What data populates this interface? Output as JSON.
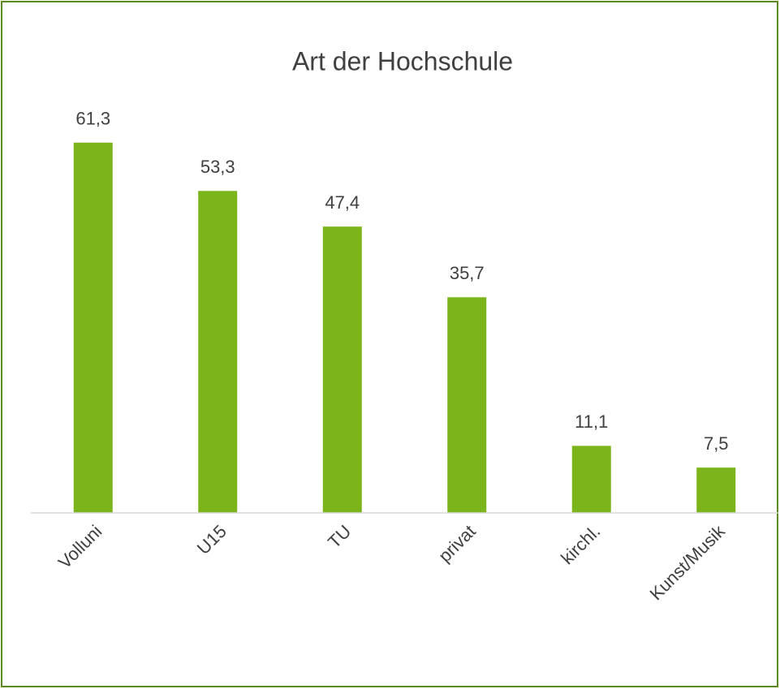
{
  "chart_data": {
    "type": "bar",
    "title": "Art der Hochschule",
    "categories": [
      "Volluni",
      "U15",
      "TU",
      "privat",
      "kirchl.",
      "Kunst/Musik"
    ],
    "values": [
      61.3,
      53.3,
      47.4,
      35.7,
      11.1,
      7.5
    ],
    "value_labels": [
      "61,3",
      "53,3",
      "47,4",
      "35,7",
      "11,1",
      "7,5"
    ],
    "color": "#7cb41c",
    "ylim": [
      0,
      70
    ]
  }
}
